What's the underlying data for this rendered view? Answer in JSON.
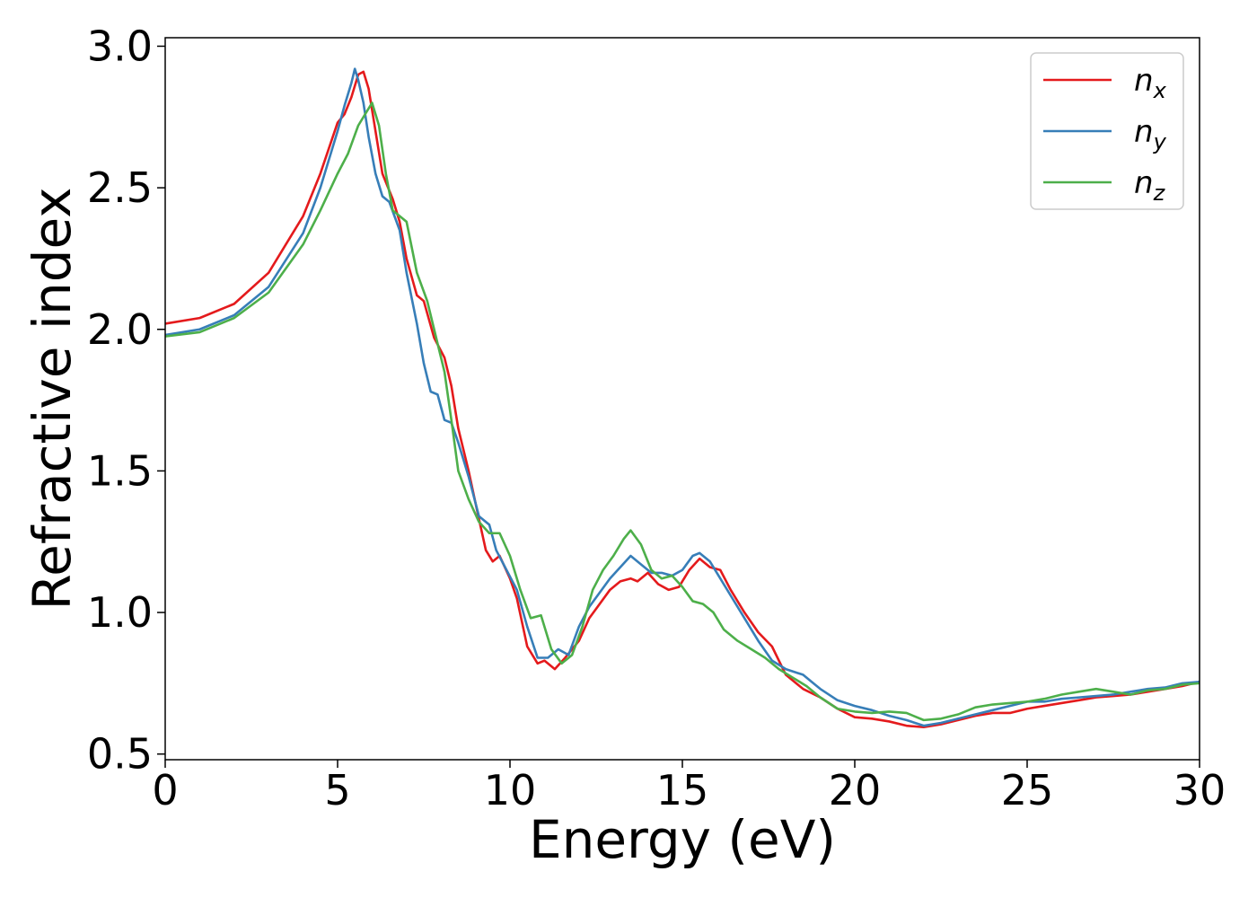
{
  "chart_data": {
    "type": "line",
    "xlabel": "Energy (eV)",
    "ylabel": "Refractive index",
    "xlim": [
      0,
      30
    ],
    "ylim": [
      0.48,
      3.03
    ],
    "x_ticks": [
      0,
      5,
      10,
      15,
      20,
      25,
      30
    ],
    "y_ticks": [
      0.5,
      1.0,
      1.5,
      2.0,
      2.5,
      3.0
    ],
    "x_tick_labels": [
      "0",
      "5",
      "10",
      "15",
      "20",
      "25",
      "30"
    ],
    "y_tick_labels": [
      "0.5",
      "1.0",
      "1.5",
      "2.0",
      "2.5",
      "3.0"
    ],
    "grid": false,
    "legend_position": "top-right",
    "series": [
      {
        "name": "n",
        "subscript": "x",
        "color": "#e41a1c",
        "points": [
          [
            0,
            2.02
          ],
          [
            1,
            2.04
          ],
          [
            2,
            2.09
          ],
          [
            3,
            2.2
          ],
          [
            4,
            2.4
          ],
          [
            4.5,
            2.55
          ],
          [
            5,
            2.73
          ],
          [
            5.2,
            2.76
          ],
          [
            5.4,
            2.82
          ],
          [
            5.6,
            2.9
          ],
          [
            5.75,
            2.91
          ],
          [
            5.9,
            2.85
          ],
          [
            6.1,
            2.7
          ],
          [
            6.3,
            2.55
          ],
          [
            6.6,
            2.46
          ],
          [
            6.8,
            2.38
          ],
          [
            7,
            2.25
          ],
          [
            7.3,
            2.12
          ],
          [
            7.5,
            2.1
          ],
          [
            7.8,
            1.97
          ],
          [
            8.1,
            1.9
          ],
          [
            8.3,
            1.8
          ],
          [
            8.5,
            1.65
          ],
          [
            8.8,
            1.5
          ],
          [
            9.1,
            1.33
          ],
          [
            9.3,
            1.22
          ],
          [
            9.5,
            1.18
          ],
          [
            9.7,
            1.2
          ],
          [
            10,
            1.12
          ],
          [
            10.2,
            1.05
          ],
          [
            10.5,
            0.88
          ],
          [
            10.8,
            0.82
          ],
          [
            11,
            0.83
          ],
          [
            11.3,
            0.8
          ],
          [
            11.6,
            0.84
          ],
          [
            12,
            0.9
          ],
          [
            12.3,
            0.98
          ],
          [
            12.6,
            1.03
          ],
          [
            12.9,
            1.08
          ],
          [
            13.2,
            1.11
          ],
          [
            13.5,
            1.12
          ],
          [
            13.7,
            1.11
          ],
          [
            14,
            1.14
          ],
          [
            14.3,
            1.1
          ],
          [
            14.6,
            1.08
          ],
          [
            14.9,
            1.09
          ],
          [
            15.2,
            1.15
          ],
          [
            15.5,
            1.19
          ],
          [
            15.8,
            1.16
          ],
          [
            16.1,
            1.15
          ],
          [
            16.4,
            1.08
          ],
          [
            16.8,
            1.0
          ],
          [
            17.2,
            0.93
          ],
          [
            17.6,
            0.88
          ],
          [
            18,
            0.78
          ],
          [
            18.5,
            0.73
          ],
          [
            19,
            0.7
          ],
          [
            19.5,
            0.66
          ],
          [
            20,
            0.63
          ],
          [
            20.5,
            0.625
          ],
          [
            21,
            0.615
          ],
          [
            21.5,
            0.6
          ],
          [
            22,
            0.595
          ],
          [
            22.5,
            0.605
          ],
          [
            23,
            0.62
          ],
          [
            23.5,
            0.635
          ],
          [
            24,
            0.645
          ],
          [
            24.5,
            0.645
          ],
          [
            25,
            0.66
          ],
          [
            25.5,
            0.67
          ],
          [
            26,
            0.68
          ],
          [
            26.5,
            0.69
          ],
          [
            27,
            0.7
          ],
          [
            27.5,
            0.705
          ],
          [
            28,
            0.71
          ],
          [
            28.5,
            0.72
          ],
          [
            29,
            0.73
          ],
          [
            29.5,
            0.74
          ],
          [
            30,
            0.755
          ]
        ]
      },
      {
        "name": "n",
        "subscript": "y",
        "color": "#377eb8",
        "points": [
          [
            0,
            1.98
          ],
          [
            1,
            2.0
          ],
          [
            2,
            2.05
          ],
          [
            3,
            2.15
          ],
          [
            4,
            2.34
          ],
          [
            4.5,
            2.5
          ],
          [
            5,
            2.7
          ],
          [
            5.2,
            2.79
          ],
          [
            5.4,
            2.87
          ],
          [
            5.5,
            2.92
          ],
          [
            5.6,
            2.88
          ],
          [
            5.75,
            2.8
          ],
          [
            5.9,
            2.68
          ],
          [
            6.1,
            2.55
          ],
          [
            6.3,
            2.47
          ],
          [
            6.5,
            2.45
          ],
          [
            6.8,
            2.35
          ],
          [
            7,
            2.2
          ],
          [
            7.3,
            2.02
          ],
          [
            7.5,
            1.88
          ],
          [
            7.7,
            1.78
          ],
          [
            7.9,
            1.77
          ],
          [
            8.1,
            1.68
          ],
          [
            8.3,
            1.67
          ],
          [
            8.5,
            1.6
          ],
          [
            8.8,
            1.48
          ],
          [
            9.1,
            1.34
          ],
          [
            9.4,
            1.31
          ],
          [
            9.6,
            1.22
          ],
          [
            9.9,
            1.15
          ],
          [
            10.2,
            1.08
          ],
          [
            10.5,
            0.95
          ],
          [
            10.8,
            0.84
          ],
          [
            11.1,
            0.84
          ],
          [
            11.4,
            0.87
          ],
          [
            11.7,
            0.85
          ],
          [
            12,
            0.95
          ],
          [
            12.3,
            1.02
          ],
          [
            12.6,
            1.07
          ],
          [
            12.9,
            1.12
          ],
          [
            13.2,
            1.16
          ],
          [
            13.5,
            1.2
          ],
          [
            13.8,
            1.17
          ],
          [
            14.1,
            1.14
          ],
          [
            14.4,
            1.14
          ],
          [
            14.7,
            1.13
          ],
          [
            15,
            1.15
          ],
          [
            15.3,
            1.2
          ],
          [
            15.5,
            1.21
          ],
          [
            15.8,
            1.18
          ],
          [
            16.1,
            1.12
          ],
          [
            16.4,
            1.06
          ],
          [
            16.8,
            0.98
          ],
          [
            17.2,
            0.9
          ],
          [
            17.6,
            0.83
          ],
          [
            18,
            0.8
          ],
          [
            18.5,
            0.78
          ],
          [
            19,
            0.73
          ],
          [
            19.5,
            0.69
          ],
          [
            20,
            0.67
          ],
          [
            20.5,
            0.655
          ],
          [
            21,
            0.635
          ],
          [
            21.5,
            0.62
          ],
          [
            22,
            0.6
          ],
          [
            22.5,
            0.61
          ],
          [
            23,
            0.625
          ],
          [
            23.5,
            0.64
          ],
          [
            24,
            0.655
          ],
          [
            24.5,
            0.67
          ],
          [
            25,
            0.685
          ],
          [
            25.5,
            0.685
          ],
          [
            26,
            0.695
          ],
          [
            26.5,
            0.7
          ],
          [
            27,
            0.705
          ],
          [
            27.5,
            0.71
          ],
          [
            28,
            0.72
          ],
          [
            28.5,
            0.73
          ],
          [
            29,
            0.735
          ],
          [
            29.5,
            0.75
          ],
          [
            30,
            0.755
          ]
        ]
      },
      {
        "name": "n",
        "subscript": "z",
        "color": "#4daf4a",
        "points": [
          [
            0,
            1.975
          ],
          [
            1,
            1.99
          ],
          [
            2,
            2.04
          ],
          [
            3,
            2.13
          ],
          [
            4,
            2.3
          ],
          [
            4.5,
            2.42
          ],
          [
            5,
            2.55
          ],
          [
            5.3,
            2.62
          ],
          [
            5.6,
            2.72
          ],
          [
            5.8,
            2.76
          ],
          [
            6,
            2.8
          ],
          [
            6.2,
            2.72
          ],
          [
            6.4,
            2.55
          ],
          [
            6.6,
            2.42
          ],
          [
            6.8,
            2.4
          ],
          [
            7,
            2.38
          ],
          [
            7.3,
            2.2
          ],
          [
            7.6,
            2.1
          ],
          [
            7.9,
            1.95
          ],
          [
            8.1,
            1.85
          ],
          [
            8.3,
            1.68
          ],
          [
            8.5,
            1.5
          ],
          [
            8.8,
            1.4
          ],
          [
            9.1,
            1.32
          ],
          [
            9.4,
            1.28
          ],
          [
            9.7,
            1.28
          ],
          [
            10,
            1.2
          ],
          [
            10.3,
            1.08
          ],
          [
            10.6,
            0.98
          ],
          [
            10.9,
            0.99
          ],
          [
            11.2,
            0.87
          ],
          [
            11.5,
            0.82
          ],
          [
            11.8,
            0.85
          ],
          [
            12.1,
            0.95
          ],
          [
            12.4,
            1.08
          ],
          [
            12.7,
            1.15
          ],
          [
            13,
            1.2
          ],
          [
            13.3,
            1.26
          ],
          [
            13.5,
            1.29
          ],
          [
            13.8,
            1.24
          ],
          [
            14.1,
            1.15
          ],
          [
            14.4,
            1.12
          ],
          [
            14.7,
            1.13
          ],
          [
            15,
            1.09
          ],
          [
            15.3,
            1.04
          ],
          [
            15.6,
            1.03
          ],
          [
            15.9,
            1.0
          ],
          [
            16.2,
            0.94
          ],
          [
            16.6,
            0.9
          ],
          [
            17,
            0.87
          ],
          [
            17.4,
            0.84
          ],
          [
            17.8,
            0.8
          ],
          [
            18.2,
            0.77
          ],
          [
            18.6,
            0.74
          ],
          [
            19,
            0.7
          ],
          [
            19.5,
            0.66
          ],
          [
            20,
            0.65
          ],
          [
            20.5,
            0.645
          ],
          [
            21,
            0.65
          ],
          [
            21.5,
            0.645
          ],
          [
            22,
            0.62
          ],
          [
            22.5,
            0.625
          ],
          [
            23,
            0.64
          ],
          [
            23.5,
            0.665
          ],
          [
            24,
            0.675
          ],
          [
            24.5,
            0.68
          ],
          [
            25,
            0.685
          ],
          [
            25.5,
            0.695
          ],
          [
            26,
            0.71
          ],
          [
            26.5,
            0.72
          ],
          [
            27,
            0.73
          ],
          [
            27.5,
            0.72
          ],
          [
            28,
            0.71
          ],
          [
            28.5,
            0.725
          ],
          [
            29,
            0.73
          ],
          [
            29.5,
            0.745
          ],
          [
            30,
            0.75
          ]
        ]
      }
    ]
  }
}
